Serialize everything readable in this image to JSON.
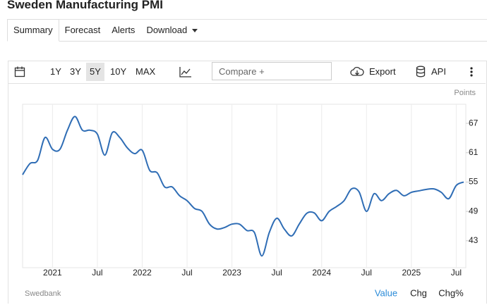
{
  "header": {
    "title": "Sweden Manufacturing PMI"
  },
  "tabs": [
    "Summary",
    "Forecast",
    "Alerts",
    "Download"
  ],
  "toolbar": {
    "ranges": [
      "1Y",
      "3Y",
      "5Y",
      "10Y",
      "MAX"
    ],
    "compare": "Compare +",
    "export": "Export",
    "api": "API"
  },
  "footer_buttons": [
    "Value",
    "Chg",
    "Chg%"
  ],
  "chart_data": {
    "type": "line",
    "y_label": "Points",
    "source": "Swedbank",
    "color": "#2f6db5",
    "grid": true,
    "x": [
      "2020-09",
      "2020-10",
      "2020-11",
      "2020-12",
      "2021-01",
      "2021-02",
      "2021-03",
      "2021-04",
      "2021-05",
      "2021-06",
      "2021-07",
      "2021-08",
      "2021-09",
      "2021-10",
      "2021-11",
      "2021-12",
      "2022-01",
      "2022-02",
      "2022-03",
      "2022-04",
      "2022-05",
      "2022-06",
      "2022-07",
      "2022-08",
      "2022-09",
      "2022-10",
      "2022-11",
      "2022-12",
      "2023-01",
      "2023-02",
      "2023-03",
      "2023-04",
      "2023-05",
      "2023-06",
      "2023-07",
      "2023-08",
      "2023-09",
      "2023-10",
      "2023-11",
      "2023-12",
      "2024-01",
      "2024-02",
      "2024-03",
      "2024-04",
      "2024-05",
      "2024-06",
      "2024-07",
      "2024-08",
      "2024-09",
      "2024-10",
      "2024-11",
      "2024-12",
      "2025-01",
      "2025-02",
      "2025-03",
      "2025-04",
      "2025-05",
      "2025-06",
      "2025-07",
      "2025-08"
    ],
    "values": [
      56.5,
      58.8,
      59.4,
      64.1,
      61.7,
      61.7,
      65.6,
      68.4,
      65.6,
      65.6,
      64.8,
      60.5,
      65.1,
      64.1,
      62.0,
      60.8,
      61.5,
      57.4,
      56.9,
      54.0,
      54.0,
      52.2,
      51.2,
      49.6,
      49.0,
      46.4,
      45.4,
      45.7,
      46.4,
      46.4,
      45.1,
      44.7,
      39.9,
      44.7,
      47.6,
      45.4,
      44.0,
      46.4,
      48.6,
      48.7,
      47.1,
      49.0,
      50.0,
      51.2,
      53.6,
      53.0,
      49.0,
      52.6,
      51.2,
      52.6,
      53.3,
      52.2,
      52.9,
      53.2,
      53.5,
      53.6,
      52.9,
      51.6,
      54.3,
      55.0
    ],
    "xlim": [
      "2020-09",
      "2025-08"
    ],
    "xticks": [
      {
        "value": "2021-01",
        "label": "2021"
      },
      {
        "value": "2021-07",
        "label": "Jul"
      },
      {
        "value": "2022-01",
        "label": "2022"
      },
      {
        "value": "2022-07",
        "label": "Jul"
      },
      {
        "value": "2023-01",
        "label": "2023"
      },
      {
        "value": "2023-07",
        "label": "Jul"
      },
      {
        "value": "2024-01",
        "label": "2024"
      },
      {
        "value": "2024-07",
        "label": "Jul"
      },
      {
        "value": "2025-01",
        "label": "2025"
      },
      {
        "value": "2025-07",
        "label": "Jul"
      }
    ],
    "ylim": [
      37.5,
      70.9
    ],
    "yticks": [
      43,
      49,
      55,
      61,
      67
    ]
  }
}
